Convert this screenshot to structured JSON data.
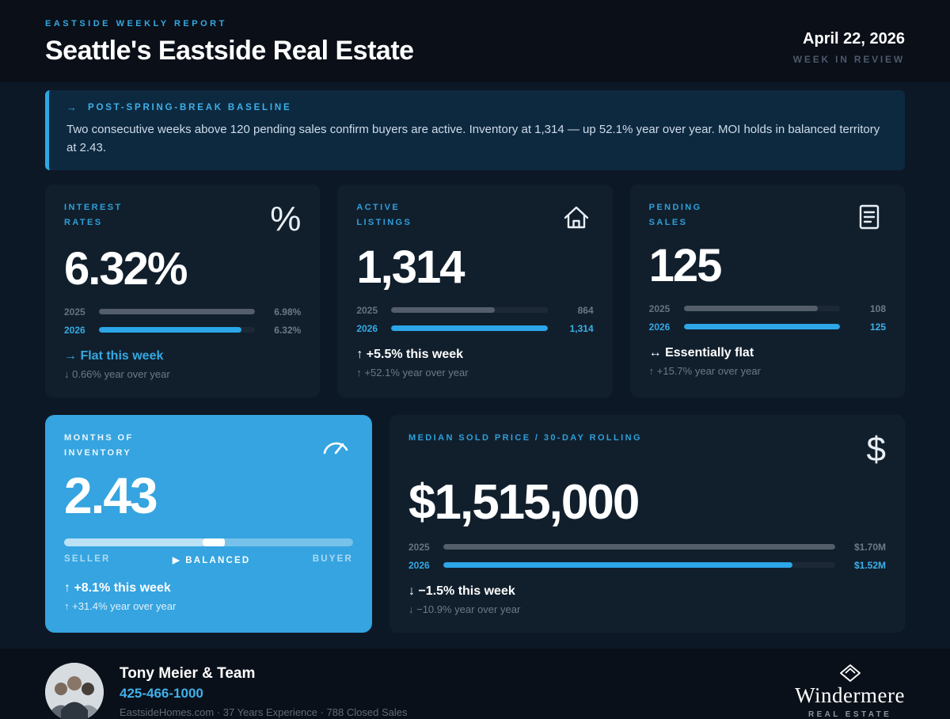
{
  "colors": {
    "accent": "#35a9e2",
    "page_bg": "#0d1826",
    "card_bg": "#111f2d",
    "highlight_card_bg": "#35a4e0",
    "bar_gray": "#535e6a",
    "bar_blue": "#2ca6e8"
  },
  "header": {
    "kicker": "EASTSIDE WEEKLY REPORT",
    "title": "Seattle's Eastside Real Estate",
    "date": "April 22, 2026",
    "week_label": "WEEK IN REVIEW"
  },
  "callout": {
    "arrow": "→",
    "title": "POST-SPRING-BREAK BASELINE",
    "body": "Two consecutive weeks above 120 pending sales confirm buyers are active. Inventory at 1,314 — up 52.1% year over year. MOI holds in balanced territory at 2.43."
  },
  "cards": {
    "interest_rates": {
      "label_line1": "INTEREST",
      "label_line2": "RATES",
      "icon_glyph": "%",
      "value": "6.32%",
      "bars": [
        {
          "year": "2025",
          "value": "6.98%",
          "pct": 100
        },
        {
          "year": "2026",
          "value": "6.32%",
          "pct": 91
        }
      ],
      "week_change": "→  Flat this week",
      "yoy_change": "↓ 0.66% year over year"
    },
    "active_listings": {
      "label_line1": "ACTIVE",
      "label_line2": "LISTINGS",
      "value": "1,314",
      "bars": [
        {
          "year": "2025",
          "value": "864",
          "pct": 66
        },
        {
          "year": "2026",
          "value": "1,314",
          "pct": 100
        }
      ],
      "week_change": "↑ +5.5% this week",
      "yoy_change": "↑ +52.1% year over year"
    },
    "pending_sales": {
      "label_line1": "PENDING",
      "label_line2": "SALES",
      "value": "125",
      "bars": [
        {
          "year": "2025",
          "value": "108",
          "pct": 86
        },
        {
          "year": "2026",
          "value": "125",
          "pct": 100
        }
      ],
      "week_change": "↔  Essentially flat",
      "yoy_change": "↑ +15.7% year over year"
    },
    "months_of_inventory": {
      "label_line1": "MONTHS OF",
      "label_line2": "INVENTORY",
      "value": "2.43",
      "gauge": {
        "fill_pct": 48,
        "thumb_left_pct": 48,
        "left_label": "SELLER",
        "mid_label": "▶ BALANCED",
        "right_label": "BUYER"
      },
      "week_change": "↑ +8.1% this week",
      "yoy_change": "↑ +31.4% year over year"
    },
    "median_price": {
      "label": "MEDIAN SOLD PRICE  /  30-DAY ROLLING",
      "icon_glyph": "$",
      "value": "$1,515,000",
      "bars": [
        {
          "year": "2025",
          "value": "$1.70M",
          "pct": 100
        },
        {
          "year": "2026",
          "value": "$1.52M",
          "pct": 89
        }
      ],
      "week_change": "↓ −1.5% this week",
      "yoy_change": "↓ −10.9% year over year"
    }
  },
  "footer": {
    "name": "Tony Meier & Team",
    "phone": "425-466-1000",
    "details": "EastsideHomes.com   ·   37 Years Experience   ·   788 Closed Sales",
    "brand": "Windermere",
    "brand_sub": "REAL ESTATE"
  },
  "chart_data": [
    {
      "type": "bar",
      "title": "Interest Rates",
      "categories": [
        "2025",
        "2026"
      ],
      "values": [
        6.98,
        6.32
      ],
      "unit": "%",
      "current": "6.32%",
      "week_change": "Flat this week",
      "yoy_change": "-0.66% year over year"
    },
    {
      "type": "bar",
      "title": "Active Listings",
      "categories": [
        "2025",
        "2026"
      ],
      "values": [
        864,
        1314
      ],
      "current": "1,314",
      "week_change": "+5.5% this week",
      "yoy_change": "+52.1% year over year"
    },
    {
      "type": "bar",
      "title": "Pending Sales",
      "categories": [
        "2025",
        "2026"
      ],
      "values": [
        108,
        125
      ],
      "current": "125",
      "week_change": "Essentially flat",
      "yoy_change": "+15.7% year over year"
    },
    {
      "type": "gauge",
      "title": "Months of Inventory",
      "value": 2.43,
      "scale_labels": [
        "SELLER",
        "BALANCED",
        "BUYER"
      ],
      "zone": "BALANCED",
      "week_change": "+8.1% this week",
      "yoy_change": "+31.4% year over year"
    },
    {
      "type": "bar",
      "title": "Median Sold Price / 30-Day Rolling",
      "categories": [
        "2025",
        "2026"
      ],
      "values": [
        1700000,
        1520000
      ],
      "value_labels": [
        "$1.70M",
        "$1.52M"
      ],
      "current": "$1,515,000",
      "week_change": "-1.5% this week",
      "yoy_change": "-10.9% year over year"
    }
  ]
}
